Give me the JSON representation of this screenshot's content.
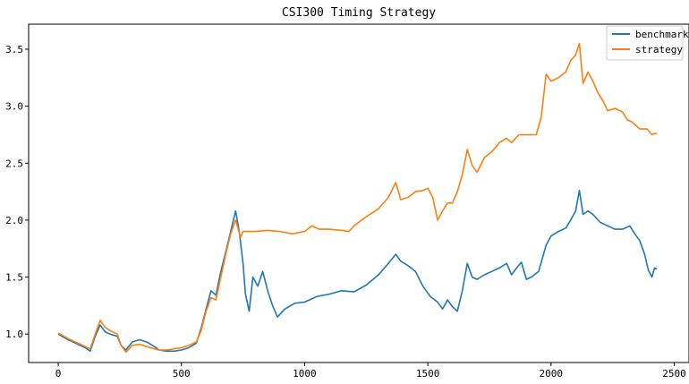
{
  "chart_data": {
    "type": "line",
    "title": "CSI300 Timing Strategy",
    "xlabel": "",
    "ylabel": "",
    "xlim": [
      -120,
      2560
    ],
    "ylim": [
      0.75,
      3.72
    ],
    "xticks": [
      0,
      500,
      1000,
      1500,
      2000,
      2500
    ],
    "yticks": [
      1.0,
      1.5,
      2.0,
      2.5,
      3.0,
      3.5
    ],
    "xtick_labels": [
      "0",
      "500",
      "1000",
      "1500",
      "2000",
      "2500"
    ],
    "ytick_labels": [
      "1.0",
      "1.5",
      "2.0",
      "2.5",
      "3.0",
      "3.5"
    ],
    "grid": false,
    "legend_position": "top-right",
    "series": [
      {
        "name": "benchmark",
        "color": "#1f77b4",
        "points": [
          [
            0,
            1.0
          ],
          [
            40,
            0.95
          ],
          [
            80,
            0.91
          ],
          [
            110,
            0.88
          ],
          [
            130,
            0.85
          ],
          [
            150,
            0.98
          ],
          [
            170,
            1.08
          ],
          [
            190,
            1.02
          ],
          [
            210,
            1.0
          ],
          [
            240,
            0.98
          ],
          [
            255,
            0.9
          ],
          [
            275,
            0.86
          ],
          [
            300,
            0.93
          ],
          [
            330,
            0.95
          ],
          [
            360,
            0.93
          ],
          [
            390,
            0.89
          ],
          [
            410,
            0.86
          ],
          [
            440,
            0.85
          ],
          [
            470,
            0.85
          ],
          [
            500,
            0.86
          ],
          [
            530,
            0.88
          ],
          [
            560,
            0.92
          ],
          [
            580,
            1.05
          ],
          [
            600,
            1.22
          ],
          [
            620,
            1.38
          ],
          [
            640,
            1.34
          ],
          [
            660,
            1.55
          ],
          [
            680,
            1.72
          ],
          [
            700,
            1.9
          ],
          [
            720,
            2.08
          ],
          [
            735,
            1.9
          ],
          [
            750,
            1.62
          ],
          [
            760,
            1.35
          ],
          [
            775,
            1.2
          ],
          [
            790,
            1.5
          ],
          [
            810,
            1.42
          ],
          [
            830,
            1.55
          ],
          [
            850,
            1.38
          ],
          [
            870,
            1.25
          ],
          [
            890,
            1.15
          ],
          [
            920,
            1.22
          ],
          [
            960,
            1.27
          ],
          [
            1000,
            1.28
          ],
          [
            1050,
            1.33
          ],
          [
            1100,
            1.35
          ],
          [
            1150,
            1.38
          ],
          [
            1200,
            1.37
          ],
          [
            1250,
            1.43
          ],
          [
            1300,
            1.52
          ],
          [
            1340,
            1.62
          ],
          [
            1370,
            1.7
          ],
          [
            1390,
            1.64
          ],
          [
            1420,
            1.6
          ],
          [
            1450,
            1.55
          ],
          [
            1480,
            1.42
          ],
          [
            1510,
            1.33
          ],
          [
            1540,
            1.28
          ],
          [
            1560,
            1.22
          ],
          [
            1580,
            1.3
          ],
          [
            1600,
            1.24
          ],
          [
            1620,
            1.2
          ],
          [
            1640,
            1.38
          ],
          [
            1660,
            1.62
          ],
          [
            1680,
            1.5
          ],
          [
            1700,
            1.48
          ],
          [
            1730,
            1.52
          ],
          [
            1760,
            1.55
          ],
          [
            1790,
            1.58
          ],
          [
            1820,
            1.62
          ],
          [
            1840,
            1.52
          ],
          [
            1860,
            1.58
          ],
          [
            1880,
            1.63
          ],
          [
            1900,
            1.48
          ],
          [
            1920,
            1.5
          ],
          [
            1950,
            1.55
          ],
          [
            1980,
            1.78
          ],
          [
            2000,
            1.86
          ],
          [
            2030,
            1.9
          ],
          [
            2060,
            1.93
          ],
          [
            2080,
            2.0
          ],
          [
            2100,
            2.08
          ],
          [
            2115,
            2.26
          ],
          [
            2130,
            2.05
          ],
          [
            2150,
            2.08
          ],
          [
            2170,
            2.05
          ],
          [
            2200,
            1.98
          ],
          [
            2230,
            1.95
          ],
          [
            2260,
            1.92
          ],
          [
            2290,
            1.92
          ],
          [
            2320,
            1.95
          ],
          [
            2340,
            1.88
          ],
          [
            2360,
            1.82
          ],
          [
            2380,
            1.7
          ],
          [
            2395,
            1.56
          ],
          [
            2410,
            1.5
          ],
          [
            2420,
            1.58
          ],
          [
            2430,
            1.57
          ]
        ]
      },
      {
        "name": "strategy",
        "color": "#ff7f0e",
        "points": [
          [
            0,
            1.01
          ],
          [
            40,
            0.96
          ],
          [
            80,
            0.92
          ],
          [
            110,
            0.89
          ],
          [
            130,
            0.87
          ],
          [
            150,
            1.0
          ],
          [
            170,
            1.12
          ],
          [
            190,
            1.06
          ],
          [
            210,
            1.03
          ],
          [
            240,
            1.0
          ],
          [
            255,
            0.9
          ],
          [
            275,
            0.84
          ],
          [
            300,
            0.9
          ],
          [
            330,
            0.91
          ],
          [
            360,
            0.89
          ],
          [
            390,
            0.87
          ],
          [
            410,
            0.86
          ],
          [
            440,
            0.86
          ],
          [
            470,
            0.87
          ],
          [
            500,
            0.88
          ],
          [
            530,
            0.9
          ],
          [
            560,
            0.93
          ],
          [
            580,
            1.03
          ],
          [
            600,
            1.2
          ],
          [
            620,
            1.32
          ],
          [
            640,
            1.3
          ],
          [
            660,
            1.5
          ],
          [
            680,
            1.7
          ],
          [
            700,
            1.88
          ],
          [
            720,
            2.0
          ],
          [
            740,
            1.85
          ],
          [
            750,
            1.9
          ],
          [
            800,
            1.9
          ],
          [
            850,
            1.91
          ],
          [
            900,
            1.9
          ],
          [
            950,
            1.88
          ],
          [
            1000,
            1.9
          ],
          [
            1030,
            1.95
          ],
          [
            1060,
            1.92
          ],
          [
            1100,
            1.92
          ],
          [
            1150,
            1.91
          ],
          [
            1180,
            1.9
          ],
          [
            1200,
            1.95
          ],
          [
            1250,
            2.03
          ],
          [
            1300,
            2.1
          ],
          [
            1340,
            2.2
          ],
          [
            1370,
            2.33
          ],
          [
            1390,
            2.18
          ],
          [
            1420,
            2.2
          ],
          [
            1450,
            2.25
          ],
          [
            1480,
            2.26
          ],
          [
            1500,
            2.28
          ],
          [
            1520,
            2.2
          ],
          [
            1540,
            2.0
          ],
          [
            1560,
            2.08
          ],
          [
            1580,
            2.15
          ],
          [
            1600,
            2.15
          ],
          [
            1620,
            2.25
          ],
          [
            1640,
            2.4
          ],
          [
            1660,
            2.62
          ],
          [
            1680,
            2.48
          ],
          [
            1700,
            2.42
          ],
          [
            1730,
            2.55
          ],
          [
            1760,
            2.6
          ],
          [
            1790,
            2.68
          ],
          [
            1820,
            2.72
          ],
          [
            1840,
            2.68
          ],
          [
            1870,
            2.75
          ],
          [
            1900,
            2.75
          ],
          [
            1940,
            2.75
          ],
          [
            1960,
            2.9
          ],
          [
            1980,
            3.28
          ],
          [
            2000,
            3.22
          ],
          [
            2030,
            3.25
          ],
          [
            2060,
            3.3
          ],
          [
            2080,
            3.4
          ],
          [
            2100,
            3.45
          ],
          [
            2115,
            3.55
          ],
          [
            2130,
            3.2
          ],
          [
            2150,
            3.3
          ],
          [
            2170,
            3.22
          ],
          [
            2190,
            3.12
          ],
          [
            2210,
            3.05
          ],
          [
            2230,
            2.96
          ],
          [
            2260,
            2.98
          ],
          [
            2290,
            2.95
          ],
          [
            2310,
            2.88
          ],
          [
            2330,
            2.86
          ],
          [
            2360,
            2.8
          ],
          [
            2390,
            2.8
          ],
          [
            2410,
            2.75
          ],
          [
            2420,
            2.76
          ],
          [
            2430,
            2.76
          ]
        ]
      }
    ]
  }
}
